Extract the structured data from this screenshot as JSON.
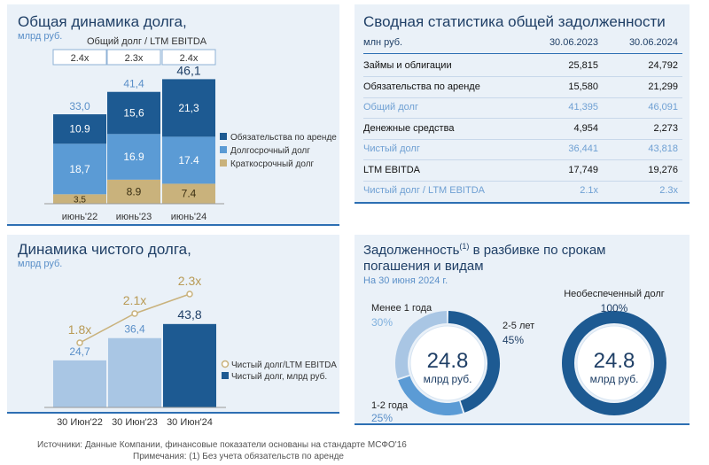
{
  "panel1": {
    "title": "Общая динамика долга,",
    "subtitle": "млрд руб.",
    "ratio_label": "Общий долг / LTM EBITDA",
    "ratios": [
      "2.4x",
      "2.3x",
      "2.4x"
    ]
  },
  "panel2": {
    "title": "Сводная статистика общей задолженности",
    "unit": "млн руб.",
    "col1": "30.06.2023",
    "col2": "30.06.2024",
    "rows": [
      {
        "label": "Займы и облигации",
        "v1": "25,815",
        "v2": "24,792",
        "style": "bold"
      },
      {
        "label": "Обязательства по аренде",
        "v1": "15,580",
        "v2": "21,299",
        "style": "bold"
      },
      {
        "label": "Общий долг",
        "v1": "41,395",
        "v2": "46,091",
        "style": "light"
      },
      {
        "label": "Денежные средства",
        "v1": "4,954",
        "v2": "2,273",
        "style": "bold"
      },
      {
        "label": "Чистый долг",
        "v1": "36,441",
        "v2": "43,818",
        "style": "light"
      },
      {
        "label": "LTM EBITDA",
        "v1": "17,749",
        "v2": "19,276",
        "style": "bold"
      },
      {
        "label": "Чистый долг / LTM EBITDA",
        "v1": "2.1x",
        "v2": "2.3x",
        "style": "light"
      }
    ]
  },
  "panel3": {
    "title": "Динамика чистого долга,",
    "subtitle": "млрд руб."
  },
  "panel4": {
    "title_part1": "Задолженность",
    "title_sup": "(1)",
    "title_part2": " в разбивке по срокам",
    "title_line2": "погашения и видам",
    "subtitle": "На 30 июня 2024 г."
  },
  "footer": {
    "sources": "Источники: Данные Компании, финансовые показатели основаны на стандарте МСФО'16",
    "note": "Примечания: (1) Без учета обязательств по аренде"
  },
  "colors": {
    "dark": "#1d5a92",
    "mid": "#5b9bd5",
    "light": "#a9c6e4",
    "tan": "#c9b27c",
    "title": "#1f3f66",
    "accent": "#2d6fb3"
  },
  "chart_data": [
    {
      "type": "bar",
      "stacked": true,
      "categories": [
        "июнь'22",
        "июнь'23",
        "июнь'24"
      ],
      "series": [
        {
          "name": "Краткосрочный долг",
          "values": [
            3.5,
            8.9,
            7.4
          ],
          "color": "#c9b27c"
        },
        {
          "name": "Долгосрочный долг",
          "values": [
            18.7,
            16.9,
            17.4
          ],
          "color": "#5b9bd5"
        },
        {
          "name": "Обязательства по аренде",
          "values": [
            10.9,
            15.6,
            21.3
          ],
          "color": "#1d5a92"
        }
      ],
      "totals": [
        "33,0",
        "41,4",
        "46,1"
      ],
      "value_labels": [
        [
          "3,5",
          "8.9",
          "7.4"
        ],
        [
          "18,7",
          "16.9",
          "17.4"
        ],
        [
          "10.9",
          "15,6",
          "21,3"
        ]
      ],
      "legend": "right",
      "ylim": [
        0,
        50
      ]
    },
    {
      "type": "bar",
      "categories": [
        "30 Июн'22",
        "30 Июн'23",
        "30 Июн'24"
      ],
      "series": [
        {
          "name": "Чистый долг, млрд руб.",
          "values": [
            24.7,
            36.4,
            43.8
          ],
          "labels": [
            "24,7",
            "36,4",
            "43,8"
          ]
        },
        {
          "name": "Чистый долг/LTM EBITDA",
          "values": [
            1.8,
            2.1,
            2.3
          ],
          "labels": [
            "1.8x",
            "2.1x",
            "2.3x"
          ],
          "type": "line"
        }
      ],
      "legend": "right",
      "ylim": [
        0,
        50
      ]
    },
    {
      "type": "pie",
      "donut": true,
      "center_value": "24.8",
      "center_unit": "млрд руб.",
      "slices": [
        {
          "label": "2-5 лет",
          "value": 45,
          "pct": "45%"
        },
        {
          "label": "1-2 года",
          "value": 25,
          "pct": "25%"
        },
        {
          "label": "Менее 1 года",
          "value": 30,
          "pct": "30%"
        }
      ]
    },
    {
      "type": "pie",
      "donut": true,
      "center_value": "24.8",
      "center_unit": "млрд руб.",
      "slices": [
        {
          "label": "Необеспеченный долг",
          "value": 100,
          "pct": "100%"
        }
      ]
    }
  ]
}
